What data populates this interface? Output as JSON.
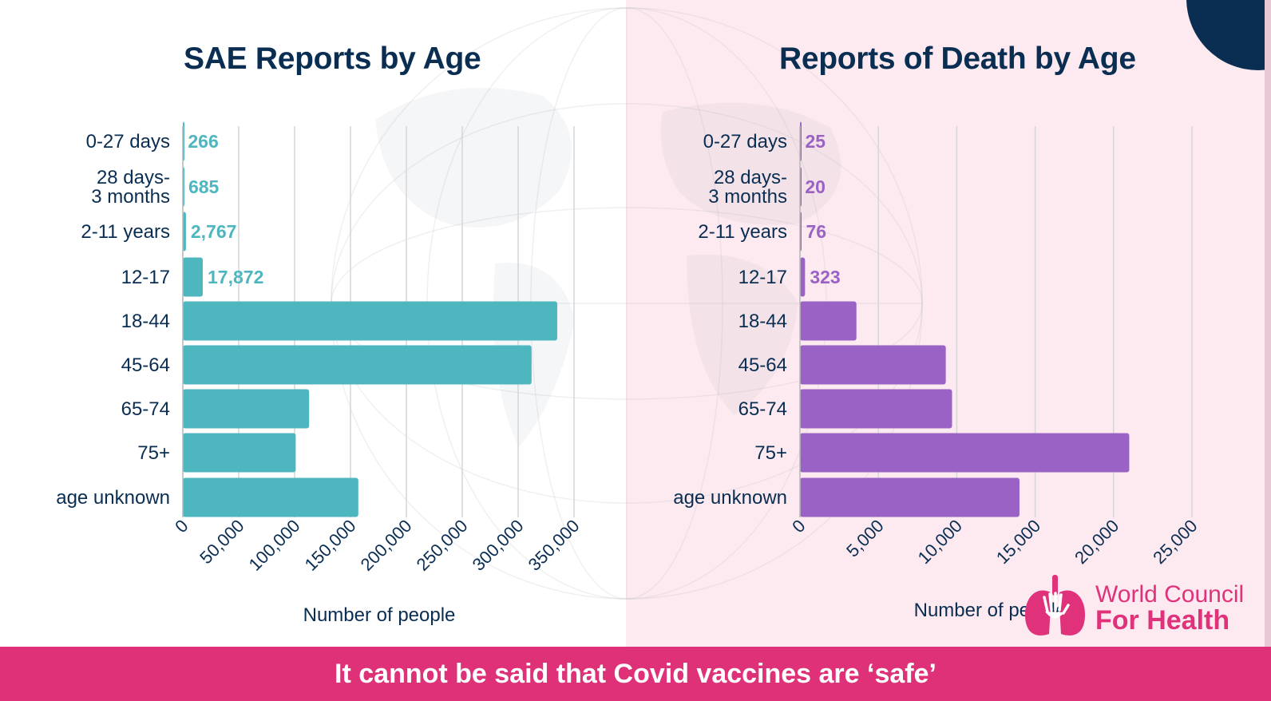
{
  "colors": {
    "teal": "#4db6be",
    "purple": "#9962c4",
    "navy": "#0a2d52",
    "pink": "#de3178",
    "grid": "#d6d6d6"
  },
  "chart_data": [
    {
      "type": "bar",
      "orientation": "horizontal",
      "title": "SAE Reports by Age",
      "xlabel": "Number of people",
      "ylabel": "",
      "categories": [
        "0-27 days",
        "28 days-\n3 months",
        "2-11 years",
        "12-17",
        "18-44",
        "45-64",
        "65-74",
        "75+",
        "age unknown"
      ],
      "values": [
        266,
        685,
        2767,
        17872,
        335000,
        312000,
        113000,
        101000,
        157000
      ],
      "data_labels": [
        "266",
        "685",
        "2,767",
        "17,872",
        null,
        null,
        null,
        null,
        null
      ],
      "xlim": [
        0,
        350000
      ],
      "x_ticks": [
        0,
        50000,
        100000,
        150000,
        200000,
        250000,
        300000,
        350000
      ],
      "x_tick_labels": [
        "0",
        "50,000",
        "100,000",
        "150,000",
        "200,000",
        "250,000",
        "300,000",
        "350,000"
      ],
      "grid": true,
      "color": "#4db6be"
    },
    {
      "type": "bar",
      "orientation": "horizontal",
      "title": "Reports of Death by Age",
      "xlabel": "Number of people",
      "ylabel": "",
      "categories": [
        "0-27 days",
        "28 days-\n3 months",
        "2-11 years",
        "12-17",
        "18-44",
        "45-64",
        "65-74",
        "75+",
        "age unknown"
      ],
      "values": [
        25,
        20,
        76,
        323,
        3600,
        9300,
        9700,
        21000,
        14000
      ],
      "data_labels": [
        "25",
        "20",
        "76",
        "323",
        null,
        null,
        null,
        null,
        null
      ],
      "xlim": [
        0,
        25000
      ],
      "x_ticks": [
        0,
        5000,
        10000,
        15000,
        20000,
        25000
      ],
      "x_tick_labels": [
        "0",
        "5,000",
        "10,000",
        "15,000",
        "20,000",
        "25,000"
      ],
      "grid": true,
      "color": "#9962c4"
    }
  ],
  "logo": {
    "line1": "World Council",
    "line2": "For Health",
    "icon": "lungs-hand-icon"
  },
  "banner": {
    "text": "It cannot be said that Covid vaccines are ‘safe’"
  }
}
